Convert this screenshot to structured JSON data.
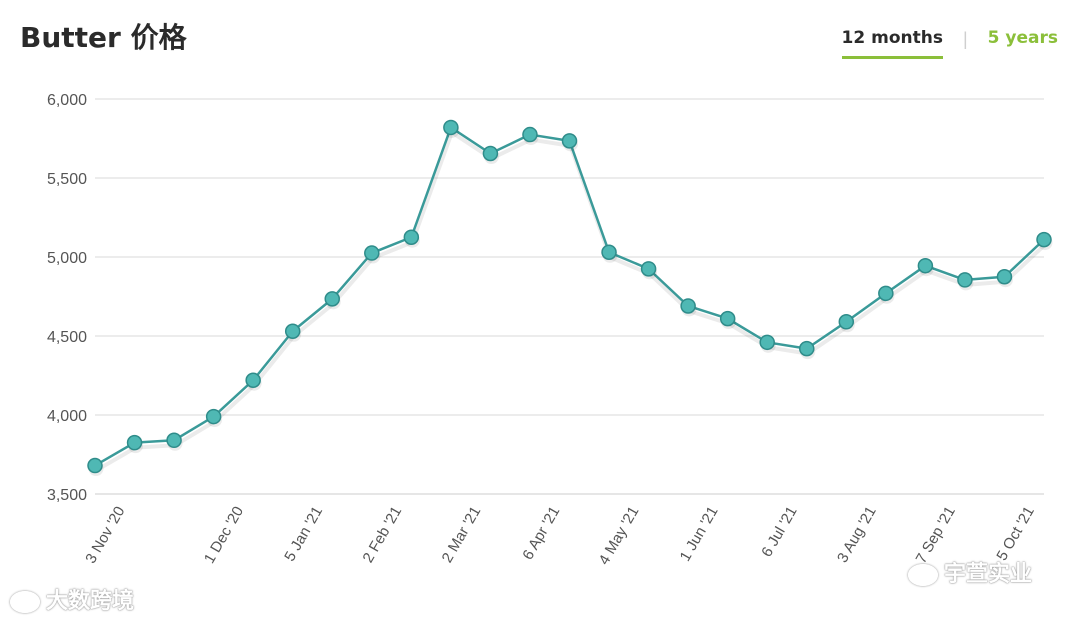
{
  "header": {
    "title": "Butter 价格",
    "tabs": [
      {
        "label": "12 months",
        "active": true
      },
      {
        "label": "5 years",
        "active": false
      }
    ]
  },
  "watermarks": {
    "left": "大数跨境",
    "right": "宇萱实业"
  },
  "colors": {
    "line": "#3a9a99",
    "marker_fill": "#4fb8b4",
    "marker_stroke": "#2f8c8a",
    "grid": "#e6e6e6",
    "tab_accent": "#8bbf3a"
  },
  "chart_data": {
    "type": "line",
    "ylim": [
      3500,
      6000
    ],
    "yticks": [
      "3,500",
      "4,000",
      "4,500",
      "5,000",
      "5,500",
      "6,000"
    ],
    "ytick_values": [
      3500,
      4000,
      4500,
      5000,
      5500,
      6000
    ],
    "xtick_labels": [
      "3 Nov '20",
      "1 Dec '20",
      "5 Jan '21",
      "2 Feb '21",
      "2 Mar '21",
      "6 Apr '21",
      "4 May '21",
      "1 Jun '21",
      "6 Jul '21",
      "3 Aug '21",
      "7 Sep '21",
      "5 Oct '21"
    ],
    "xtick_point_index": [
      0,
      3,
      5,
      7,
      9,
      11,
      13,
      15,
      17,
      19,
      21,
      23
    ],
    "grid": true,
    "series": [
      {
        "values": [
          3680,
          3825,
          3840,
          3990,
          4220,
          4530,
          4735,
          5025,
          5125,
          5820,
          5655,
          5775,
          5735,
          5030,
          4925,
          4690,
          4610,
          4460,
          4420,
          4590,
          4770,
          4945,
          4855,
          4875,
          5110
        ]
      }
    ]
  }
}
